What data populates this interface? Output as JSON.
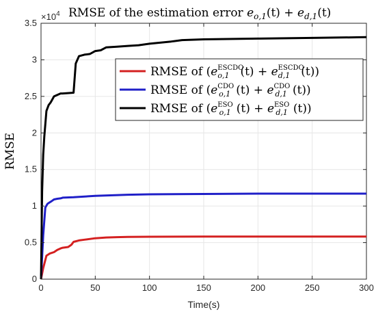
{
  "chart_data": {
    "type": "line",
    "title": "RMSE of the estimation error e_{o,1}(t) + e_{d,1}(t)",
    "title_parts": {
      "prefix": "RMSE of the estimation error ",
      "e1": "e",
      "e1_sub": "o,1",
      "t1": "(t) + ",
      "e2": "e",
      "e2_sub": "d,1",
      "t2": "(t)"
    },
    "xlabel": "Time(s)",
    "ylabel": "RMSE",
    "xlim": [
      0,
      300
    ],
    "ylim": [
      0,
      35000
    ],
    "y_exponent_label": "×10",
    "y_exponent_power": "4",
    "x_ticks": [
      "0",
      "50",
      "100",
      "150",
      "200",
      "250",
      "300"
    ],
    "x_tick_values": [
      0,
      50,
      100,
      150,
      200,
      250,
      300
    ],
    "y_ticks": [
      "0",
      "0.5",
      "1",
      "1.5",
      "2",
      "2.5",
      "3",
      "3.5"
    ],
    "y_tick_values": [
      0,
      5000,
      10000,
      15000,
      20000,
      25000,
      30000,
      35000
    ],
    "grid": true,
    "legend_position": "top-right",
    "legend": [
      {
        "prefix": "RMSE of (",
        "e": "e",
        "sup1": "ESCDO",
        "sub1": "o,1",
        "mid": "(t) + ",
        "sup2": "ESCDO",
        "sub2": "d,1",
        "suffix": "(t))"
      },
      {
        "prefix": "RMSE of (",
        "e": "e",
        "sup1": "CDO",
        "sub1": "o,1",
        "mid": "(t) + ",
        "sup2": "CDO",
        "sub2": "d,1",
        "suffix": "(t))"
      },
      {
        "prefix": "RMSE of (",
        "e": "e",
        "sup1": "ESO",
        "sub1": "o,1",
        "mid": "(t) + ",
        "sup2": "ESO",
        "sub2": "d,1",
        "suffix": "(t))"
      }
    ],
    "series": [
      {
        "color": "#d42020",
        "x": [
          0,
          2,
          5,
          8,
          12,
          15,
          18,
          20,
          25,
          28,
          30,
          35,
          40,
          50,
          60,
          70,
          80,
          100,
          150,
          200,
          250,
          300
        ],
        "y": [
          0,
          1500,
          3200,
          3500,
          3700,
          4000,
          4200,
          4300,
          4400,
          4700,
          5100,
          5300,
          5400,
          5600,
          5700,
          5750,
          5780,
          5800,
          5820,
          5830,
          5830,
          5830
        ]
      },
      {
        "color": "#1f1fc8",
        "x": [
          0,
          2,
          4,
          6,
          8,
          10,
          12,
          15,
          18,
          20,
          30,
          50,
          80,
          100,
          150,
          200,
          250,
          300
        ],
        "y": [
          0,
          6000,
          9800,
          10300,
          10500,
          10700,
          10900,
          11000,
          11050,
          11150,
          11200,
          11400,
          11550,
          11600,
          11650,
          11700,
          11700,
          11700
        ]
      },
      {
        "color": "#000000",
        "x": [
          0,
          1,
          2,
          3,
          5,
          7,
          9,
          12,
          15,
          18,
          20,
          30,
          32,
          35,
          40,
          45,
          50,
          55,
          60,
          70,
          80,
          90,
          100,
          120,
          130,
          150,
          200,
          250,
          300
        ],
        "y": [
          0,
          12000,
          17000,
          19500,
          23000,
          23800,
          24200,
          25000,
          25200,
          25400,
          25400,
          25500,
          29500,
          30500,
          30700,
          30800,
          31200,
          31300,
          31700,
          31800,
          31900,
          32000,
          32200,
          32500,
          32700,
          32800,
          32900,
          33000,
          33100
        ]
      }
    ]
  }
}
